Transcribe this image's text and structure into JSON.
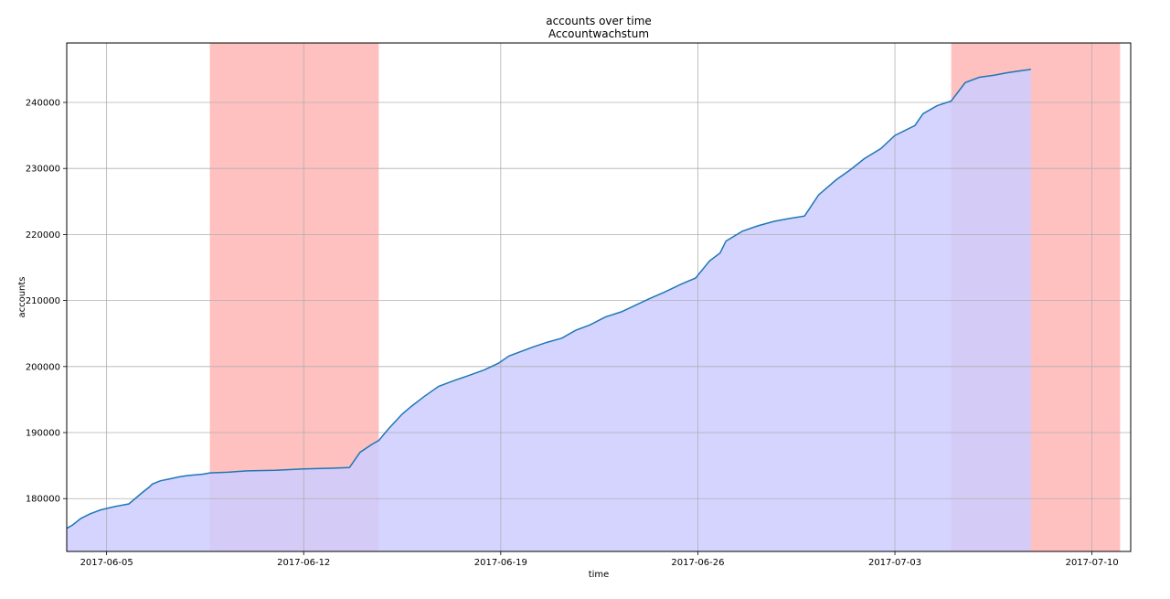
{
  "chart_data": {
    "type": "area",
    "title": "accounts over time",
    "subtitle": "Accountwachstum",
    "xlabel": "time",
    "ylabel": "accounts",
    "xlim": [
      "2017-06-03T14:00",
      "2017-07-11T09:00"
    ],
    "ylim": [
      172000,
      249000
    ],
    "grid": true,
    "x_ticks": [
      "2017-06-05",
      "2017-06-12",
      "2017-06-19",
      "2017-06-26",
      "2017-07-03",
      "2017-07-10"
    ],
    "y_ticks": [
      "180000",
      "190000",
      "200000",
      "210000",
      "220000",
      "230000",
      "240000"
    ],
    "colors": {
      "line": "#1f77b4",
      "fill": "#ccccff",
      "highlight": "#ff9999"
    },
    "highlight_ranges": [
      [
        "2017-06-08T16:00",
        "2017-06-14T16:00"
      ],
      [
        "2017-07-05T00:00",
        "2017-07-11T00:00"
      ]
    ],
    "series": [
      {
        "x": [
          "2017-06-03T14:00",
          "2017-06-03T19:00",
          "2017-06-04T02:00",
          "2017-06-04T10:00",
          "2017-06-04T19:00",
          "2017-06-05T07:00",
          "2017-06-05T19:00",
          "2017-06-06T07:00",
          "2017-06-06T12:00",
          "2017-06-06T15:00",
          "2017-06-06T22:00",
          "2017-06-07T06:00",
          "2017-06-07T14:00",
          "2017-06-07T21:00",
          "2017-06-08T10:00",
          "2017-06-08T16:00",
          "2017-06-09T07:00",
          "2017-06-10T00:00",
          "2017-06-11T00:00",
          "2017-06-12T00:00",
          "2017-06-13T00:00",
          "2017-06-13T15:00",
          "2017-06-14T00:00",
          "2017-06-14T10:00",
          "2017-06-14T16:00",
          "2017-06-15T00:00",
          "2017-06-15T12:00",
          "2017-06-15T20:00",
          "2017-06-16T07:00",
          "2017-06-16T19:00",
          "2017-06-17T07:00",
          "2017-06-17T20:00",
          "2017-06-18T10:00",
          "2017-06-18T22:00",
          "2017-06-19T07:00",
          "2017-06-19T16:00",
          "2017-06-20T04:00",
          "2017-06-20T16:00",
          "2017-06-21T04:00",
          "2017-06-21T16:00",
          "2017-06-22T04:00",
          "2017-06-22T17:00",
          "2017-06-23T07:00",
          "2017-06-23T19:00",
          "2017-06-24T07:00",
          "2017-06-24T20:00",
          "2017-06-25T10:00",
          "2017-06-25T22:00",
          "2017-06-26T10:00",
          "2017-06-26T19:00",
          "2017-06-27T00:00",
          "2017-06-27T14:00",
          "2017-06-28T03:00",
          "2017-06-28T17:00",
          "2017-06-29T05:00",
          "2017-06-29T19:00",
          "2017-06-30T07:00",
          "2017-06-30T22:00",
          "2017-07-01T10:00",
          "2017-07-01T22:00",
          "2017-07-02T12:00",
          "2017-07-03T00:00",
          "2017-07-03T17:00",
          "2017-07-04T00:00",
          "2017-07-04T12:00",
          "2017-07-05T00:00",
          "2017-07-05T12:00",
          "2017-07-06T00:00",
          "2017-07-06T12:00",
          "2017-07-07T00:00",
          "2017-07-07T12:00",
          "2017-07-07T20:00"
        ],
        "values": [
          175500,
          176000,
          177000,
          177700,
          178300,
          178800,
          179200,
          181000,
          181700,
          182200,
          182700,
          183000,
          183300,
          183500,
          183700,
          183900,
          184000,
          184200,
          184300,
          184500,
          184600,
          184700,
          187000,
          188200,
          188800,
          190500,
          192800,
          194000,
          195500,
          197000,
          197800,
          198600,
          199500,
          200500,
          201600,
          202200,
          203000,
          203700,
          204300,
          205500,
          206300,
          207500,
          208300,
          209300,
          210300,
          211300,
          212500,
          213400,
          216000,
          217200,
          219000,
          220500,
          221300,
          222000,
          222400,
          222800,
          226000,
          228300,
          229800,
          231500,
          233000,
          235000,
          236500,
          238300,
          239500,
          240200,
          243000,
          243800,
          244100,
          244500,
          244800,
          245000
        ]
      }
    ]
  }
}
